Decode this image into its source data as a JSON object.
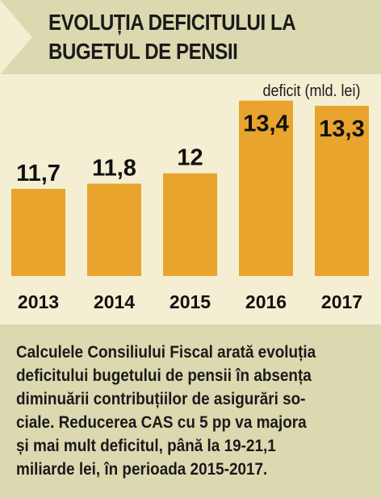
{
  "header": {
    "title_line1": "EVOLUȚIA DEFICITULUI LA",
    "title_line2": "BUGETUL DE PENSII"
  },
  "chart_data": {
    "type": "bar",
    "categories": [
      "2013",
      "2014",
      "2015",
      "2016",
      "2017"
    ],
    "values": [
      11.7,
      11.8,
      12,
      13.4,
      13.3
    ],
    "value_labels": [
      "11,7",
      "11,8",
      "12",
      "13,4",
      "13,3"
    ],
    "unit_label": "deficit (mld. lei)",
    "bar_color": "#e8a42c",
    "grid": false,
    "legend": "none"
  },
  "note": {
    "lines": [
      "Calculele Consiliului Fiscal arată evoluția",
      "deficitului bugetului de pensii în absența",
      "diminuării contribuțiilor de asigurări so-",
      "ciale. Reducerea CAS cu 5 pp va majora",
      "și mai mult deficitul, până la 19-21,1",
      "miliarde lei, în perioada 2015-2017."
    ]
  }
}
